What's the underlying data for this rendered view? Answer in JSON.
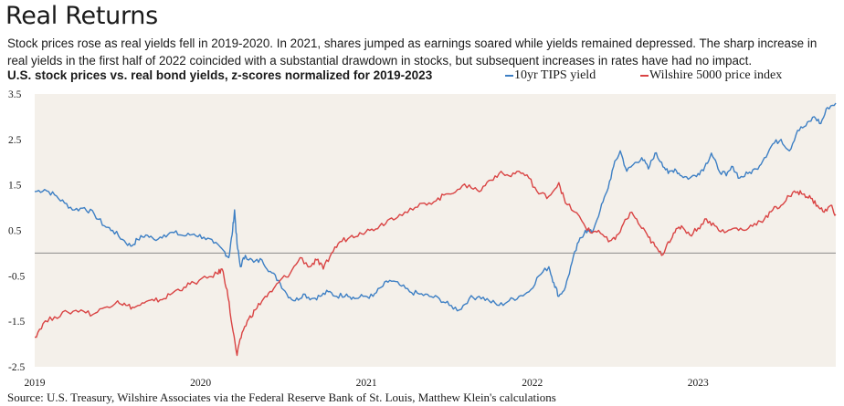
{
  "header": {
    "title": "Real Returns",
    "subtitle": "Stock prices rose as real yields fell in 2019-2020. In 2021, shares jumped as earnings soared while yields remained depressed. The sharp increase in real yields in the first half of 2022 coincided with a substantial drawdown in stocks, but subsequent increases in rates have had no impact."
  },
  "footer": {
    "source": "Source: U.S. Treasury, Wilshire Associates via the Federal Reserve Bank of St. Louis, Matthew Klein's calculations"
  },
  "chart_data": {
    "type": "line",
    "title": "U.S. stock prices vs. real bond yields, z-scores normalized for 2019-2023",
    "xlabel": "",
    "ylabel": "",
    "xlim": [
      2019.0,
      2023.83
    ],
    "ylim": [
      -2.5,
      3.5
    ],
    "x_ticks": [
      {
        "value": 2019,
        "label": "2019"
      },
      {
        "value": 2020,
        "label": "2020"
      },
      {
        "value": 2021,
        "label": "2021"
      },
      {
        "value": 2022,
        "label": "2022"
      },
      {
        "value": 2023,
        "label": "2023"
      }
    ],
    "y_ticks": [
      {
        "value": 3.5,
        "label": "3.5"
      },
      {
        "value": 2.5,
        "label": "2.5"
      },
      {
        "value": 1.5,
        "label": "1.5"
      },
      {
        "value": 0.5,
        "label": "0.5"
      },
      {
        "value": -0.5,
        "label": "-0.5"
      },
      {
        "value": -1.5,
        "label": "-1.5"
      },
      {
        "value": -2.5,
        "label": "-2.5"
      }
    ],
    "reference_line": 0,
    "grid": false,
    "legend_position": "top-right",
    "series": [
      {
        "name": "10yr TIPS yield",
        "color": "#3d7fc4",
        "points": [
          [
            2019.0,
            1.35
          ],
          [
            2019.06,
            1.4
          ],
          [
            2019.12,
            1.28
          ],
          [
            2019.18,
            1.1
          ],
          [
            2019.24,
            0.95
          ],
          [
            2019.3,
            1.0
          ],
          [
            2019.36,
            0.85
          ],
          [
            2019.42,
            0.6
          ],
          [
            2019.47,
            0.5
          ],
          [
            2019.53,
            0.3
          ],
          [
            2019.58,
            0.15
          ],
          [
            2019.62,
            0.3
          ],
          [
            2019.67,
            0.4
          ],
          [
            2019.72,
            0.3
          ],
          [
            2019.78,
            0.4
          ],
          [
            2019.84,
            0.45
          ],
          [
            2019.9,
            0.38
          ],
          [
            2019.96,
            0.42
          ],
          [
            2020.02,
            0.35
          ],
          [
            2020.08,
            0.22
          ],
          [
            2020.14,
            0.05
          ],
          [
            2020.17,
            -0.1
          ],
          [
            2020.19,
            0.4
          ],
          [
            2020.205,
            0.95
          ],
          [
            2020.22,
            0.2
          ],
          [
            2020.24,
            -0.3
          ],
          [
            2020.27,
            -0.05
          ],
          [
            2020.32,
            -0.2
          ],
          [
            2020.37,
            -0.15
          ],
          [
            2020.42,
            -0.4
          ],
          [
            2020.47,
            -0.6
          ],
          [
            2020.52,
            -0.9
          ],
          [
            2020.57,
            -1.05
          ],
          [
            2020.62,
            -0.9
          ],
          [
            2020.67,
            -1.0
          ],
          [
            2020.72,
            -0.95
          ],
          [
            2020.77,
            -0.85
          ],
          [
            2020.82,
            -0.95
          ],
          [
            2020.88,
            -0.9
          ],
          [
            2020.93,
            -1.0
          ],
          [
            2020.98,
            -0.95
          ],
          [
            2021.04,
            -0.95
          ],
          [
            2021.09,
            -0.75
          ],
          [
            2021.14,
            -0.6
          ],
          [
            2021.2,
            -0.7
          ],
          [
            2021.26,
            -0.85
          ],
          [
            2021.32,
            -0.9
          ],
          [
            2021.38,
            -0.95
          ],
          [
            2021.44,
            -1.0
          ],
          [
            2021.5,
            -1.15
          ],
          [
            2021.56,
            -1.25
          ],
          [
            2021.62,
            -1.0
          ],
          [
            2021.68,
            -0.95
          ],
          [
            2021.74,
            -1.05
          ],
          [
            2021.8,
            -1.15
          ],
          [
            2021.86,
            -1.05
          ],
          [
            2021.92,
            -0.95
          ],
          [
            2021.98,
            -0.85
          ],
          [
            2022.04,
            -0.5
          ],
          [
            2022.1,
            -0.3
          ],
          [
            2022.13,
            -0.65
          ],
          [
            2022.16,
            -0.95
          ],
          [
            2022.2,
            -0.75
          ],
          [
            2022.24,
            -0.2
          ],
          [
            2022.28,
            0.25
          ],
          [
            2022.32,
            0.5
          ],
          [
            2022.36,
            0.45
          ],
          [
            2022.41,
            0.95
          ],
          [
            2022.45,
            1.35
          ],
          [
            2022.49,
            1.9
          ],
          [
            2022.53,
            2.25
          ],
          [
            2022.57,
            1.8
          ],
          [
            2022.61,
            1.95
          ],
          [
            2022.66,
            2.1
          ],
          [
            2022.7,
            1.85
          ],
          [
            2022.74,
            2.2
          ],
          [
            2022.78,
            2.0
          ],
          [
            2022.82,
            1.75
          ],
          [
            2022.86,
            1.85
          ],
          [
            2022.9,
            1.7
          ],
          [
            2022.95,
            1.65
          ],
          [
            2023.0,
            1.75
          ],
          [
            2023.04,
            1.9
          ],
          [
            2023.08,
            2.2
          ],
          [
            2023.12,
            1.85
          ],
          [
            2023.17,
            1.7
          ],
          [
            2023.21,
            1.9
          ],
          [
            2023.25,
            1.65
          ],
          [
            2023.3,
            1.75
          ],
          [
            2023.35,
            1.85
          ],
          [
            2023.4,
            2.1
          ],
          [
            2023.45,
            2.4
          ],
          [
            2023.5,
            2.5
          ],
          [
            2023.55,
            2.25
          ],
          [
            2023.6,
            2.7
          ],
          [
            2023.65,
            2.8
          ],
          [
            2023.7,
            3.0
          ],
          [
            2023.74,
            2.85
          ],
          [
            2023.78,
            3.2
          ],
          [
            2023.83,
            3.3
          ]
        ]
      },
      {
        "name": "Wilshire 5000 price index",
        "color": "#d94343",
        "points": [
          [
            2019.0,
            -1.85
          ],
          [
            2019.05,
            -1.55
          ],
          [
            2019.12,
            -1.4
          ],
          [
            2019.2,
            -1.3
          ],
          [
            2019.28,
            -1.25
          ],
          [
            2019.35,
            -1.35
          ],
          [
            2019.42,
            -1.2
          ],
          [
            2019.5,
            -1.05
          ],
          [
            2019.55,
            -1.15
          ],
          [
            2019.6,
            -1.2
          ],
          [
            2019.66,
            -1.1
          ],
          [
            2019.72,
            -1.05
          ],
          [
            2019.78,
            -1.0
          ],
          [
            2019.84,
            -0.85
          ],
          [
            2019.9,
            -0.75
          ],
          [
            2019.96,
            -0.65
          ],
          [
            2020.04,
            -0.55
          ],
          [
            2020.1,
            -0.45
          ],
          [
            2020.13,
            -0.35
          ],
          [
            2020.16,
            -0.8
          ],
          [
            2020.19,
            -1.6
          ],
          [
            2020.22,
            -2.25
          ],
          [
            2020.25,
            -1.75
          ],
          [
            2020.29,
            -1.45
          ],
          [
            2020.33,
            -1.25
          ],
          [
            2020.38,
            -1.0
          ],
          [
            2020.43,
            -0.85
          ],
          [
            2020.48,
            -0.6
          ],
          [
            2020.54,
            -0.45
          ],
          [
            2020.6,
            -0.1
          ],
          [
            2020.66,
            -0.3
          ],
          [
            2020.7,
            -0.15
          ],
          [
            2020.74,
            -0.35
          ],
          [
            2020.79,
            0.0
          ],
          [
            2020.84,
            0.25
          ],
          [
            2020.9,
            0.35
          ],
          [
            2020.96,
            0.45
          ],
          [
            2021.02,
            0.5
          ],
          [
            2021.08,
            0.6
          ],
          [
            2021.14,
            0.75
          ],
          [
            2021.2,
            0.85
          ],
          [
            2021.28,
            0.95
          ],
          [
            2021.35,
            1.1
          ],
          [
            2021.42,
            1.15
          ],
          [
            2021.48,
            1.3
          ],
          [
            2021.55,
            1.4
          ],
          [
            2021.62,
            1.5
          ],
          [
            2021.68,
            1.35
          ],
          [
            2021.74,
            1.6
          ],
          [
            2021.8,
            1.75
          ],
          [
            2021.86,
            1.7
          ],
          [
            2021.92,
            1.8
          ],
          [
            2021.98,
            1.65
          ],
          [
            2022.04,
            1.3
          ],
          [
            2022.1,
            1.25
          ],
          [
            2022.16,
            1.55
          ],
          [
            2022.2,
            1.1
          ],
          [
            2022.26,
            0.9
          ],
          [
            2022.3,
            0.7
          ],
          [
            2022.35,
            0.45
          ],
          [
            2022.4,
            0.5
          ],
          [
            2022.46,
            0.25
          ],
          [
            2022.5,
            0.3
          ],
          [
            2022.55,
            0.65
          ],
          [
            2022.6,
            0.9
          ],
          [
            2022.65,
            0.6
          ],
          [
            2022.7,
            0.35
          ],
          [
            2022.74,
            0.15
          ],
          [
            2022.78,
            -0.05
          ],
          [
            2022.82,
            0.25
          ],
          [
            2022.86,
            0.45
          ],
          [
            2022.9,
            0.6
          ],
          [
            2022.95,
            0.4
          ],
          [
            2023.0,
            0.55
          ],
          [
            2023.05,
            0.75
          ],
          [
            2023.1,
            0.6
          ],
          [
            2023.16,
            0.45
          ],
          [
            2023.22,
            0.55
          ],
          [
            2023.28,
            0.5
          ],
          [
            2023.34,
            0.65
          ],
          [
            2023.4,
            0.75
          ],
          [
            2023.45,
            0.95
          ],
          [
            2023.5,
            1.05
          ],
          [
            2023.55,
            1.25
          ],
          [
            2023.6,
            1.35
          ],
          [
            2023.64,
            1.3
          ],
          [
            2023.68,
            1.2
          ],
          [
            2023.72,
            1.05
          ],
          [
            2023.76,
            0.9
          ],
          [
            2023.8,
            1.05
          ],
          [
            2023.83,
            0.85
          ]
        ]
      }
    ]
  }
}
